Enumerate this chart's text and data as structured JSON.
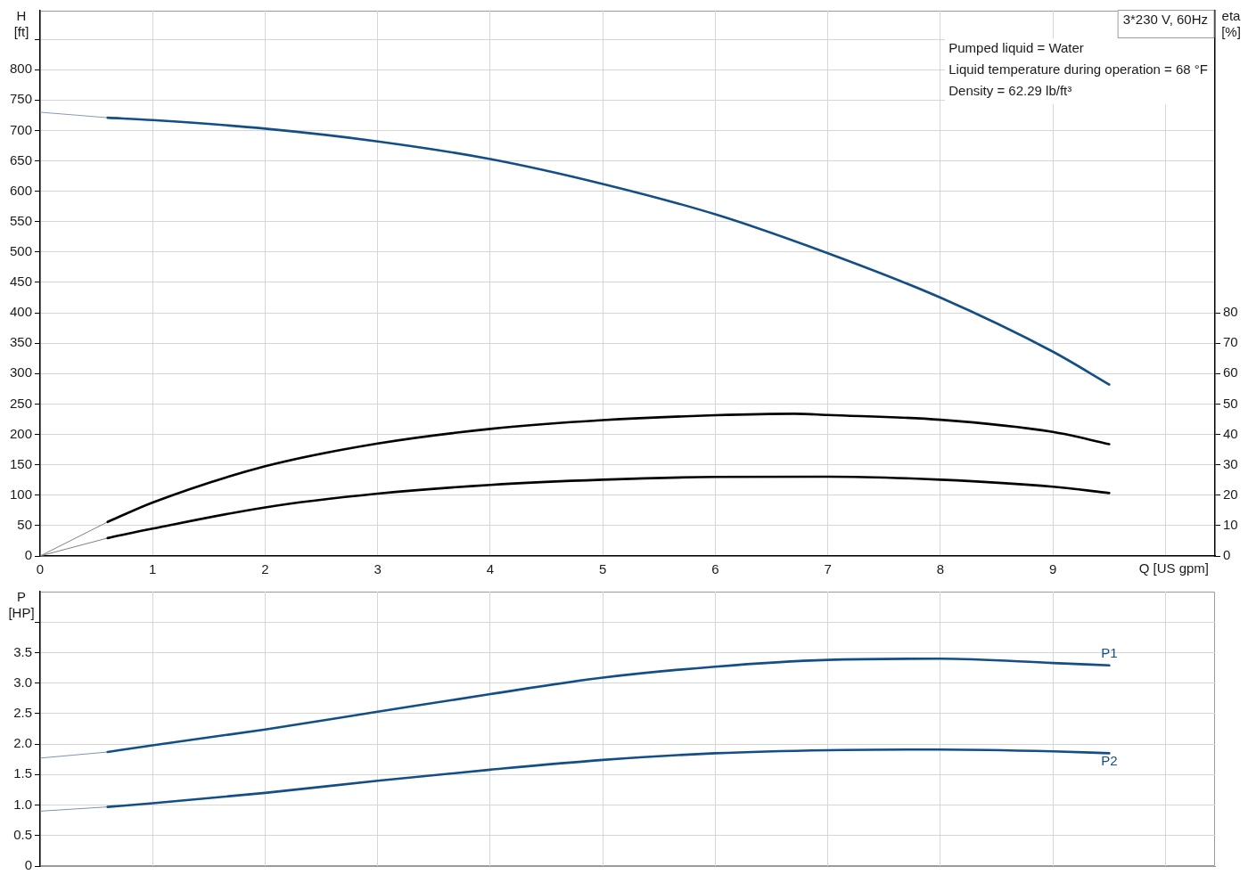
{
  "chart_data": [
    {
      "type": "line",
      "title": "3*230 V, 60Hz",
      "xlabel": "Q [US gpm]",
      "ylabel": "H [ft]",
      "y2label": "eta [%]",
      "annotations": [
        "Pumped liquid = Water",
        "Liquid temperature during operation = 68 °F",
        "Density = 62.29 lb/ft³"
      ],
      "series": [
        {
          "color": "#134e87",
          "x": [
            0.6,
            1,
            2,
            3,
            4,
            5,
            6,
            7,
            8,
            9,
            9.5
          ],
          "values": [
            721,
            717,
            703,
            682,
            653,
            612,
            562,
            498,
            425,
            336,
            282
          ]
        },
        {
          "color": "#8a9ab0",
          "x": [
            0,
            0.6
          ],
          "values": [
            730,
            721
          ]
        },
        {
          "color": "#000000",
          "axis": "y2",
          "x": [
            0.6,
            1,
            2,
            3,
            4,
            5,
            6,
            6.7,
            7,
            8,
            9,
            9.5
          ],
          "values": [
            11.2,
            17.6,
            29.5,
            37.0,
            41.8,
            44.7,
            46.3,
            46.8,
            46.4,
            44.8,
            40.8,
            36.8
          ]
        },
        {
          "color": "#808080",
          "axis": "y2",
          "x": [
            0,
            0.6
          ],
          "values": [
            0,
            11.2
          ]
        },
        {
          "color": "#000000",
          "axis": "y2",
          "x": [
            0.6,
            1,
            2,
            3,
            4,
            5,
            6,
            7,
            8,
            9,
            9.5
          ],
          "values": [
            5.9,
            9.0,
            16.0,
            20.5,
            23.4,
            25.1,
            26.0,
            26.1,
            25.1,
            22.8,
            20.7
          ]
        },
        {
          "color": "#808080",
          "axis": "y2",
          "x": [
            0,
            0.6
          ],
          "values": [
            0,
            5.9
          ]
        }
      ],
      "xlim": [
        0,
        10.44
      ],
      "xticks": [
        0,
        1,
        2,
        3,
        4,
        5,
        6,
        7,
        8,
        9,
        {
          "value": 10,
          "label": null
        }
      ],
      "ylim": [
        0,
        897
      ],
      "yticks": [
        0,
        50,
        100,
        150,
        200,
        250,
        300,
        350,
        400,
        450,
        500,
        550,
        600,
        650,
        700,
        750,
        800,
        {
          "value": 850,
          "label": null
        }
      ],
      "y2lim": [
        0,
        179.4
      ],
      "y2ticks": [
        0,
        10,
        20,
        30,
        40,
        50,
        60,
        70,
        80
      ],
      "grid": true,
      "marker": "none",
      "line_style": "solid"
    },
    {
      "type": "line",
      "ylabel": "P [HP]",
      "series": [
        {
          "name": "P1",
          "color": "#134e87",
          "x": [
            0.6,
            1,
            2,
            3,
            4,
            5,
            6,
            7,
            8,
            9,
            9.5
          ],
          "values": [
            1.87,
            1.98,
            2.24,
            2.53,
            2.82,
            3.09,
            3.27,
            3.38,
            3.4,
            3.33,
            3.29
          ]
        },
        {
          "color": "#7f93ad",
          "x": [
            0,
            0.6
          ],
          "values": [
            1.77,
            1.87
          ]
        },
        {
          "name": "P2",
          "color": "#134e87",
          "x": [
            0.6,
            1,
            2,
            3,
            4,
            5,
            6,
            7,
            8,
            9,
            9.5
          ],
          "values": [
            0.97,
            1.03,
            1.2,
            1.4,
            1.58,
            1.74,
            1.85,
            1.9,
            1.91,
            1.88,
            1.85
          ]
        },
        {
          "color": "#7f93ad",
          "x": [
            0,
            0.6
          ],
          "values": [
            0.9,
            0.97
          ]
        }
      ],
      "xlim": [
        0,
        10.44
      ],
      "xticks": [
        0,
        1,
        2,
        3,
        4,
        5,
        6,
        7,
        8,
        9,
        10
      ],
      "ylim": [
        0,
        4.5
      ],
      "yticks": [
        0,
        0.5,
        {
          "value": 1,
          "label": "1.0"
        },
        1.5,
        {
          "value": 2,
          "label": "2.0"
        },
        2.5,
        {
          "value": 3,
          "label": "3.0"
        },
        3.5,
        {
          "value": 4,
          "label": null
        }
      ],
      "tick_labels": "y",
      "grid": true,
      "marker": "none",
      "line_style": "solid"
    }
  ]
}
